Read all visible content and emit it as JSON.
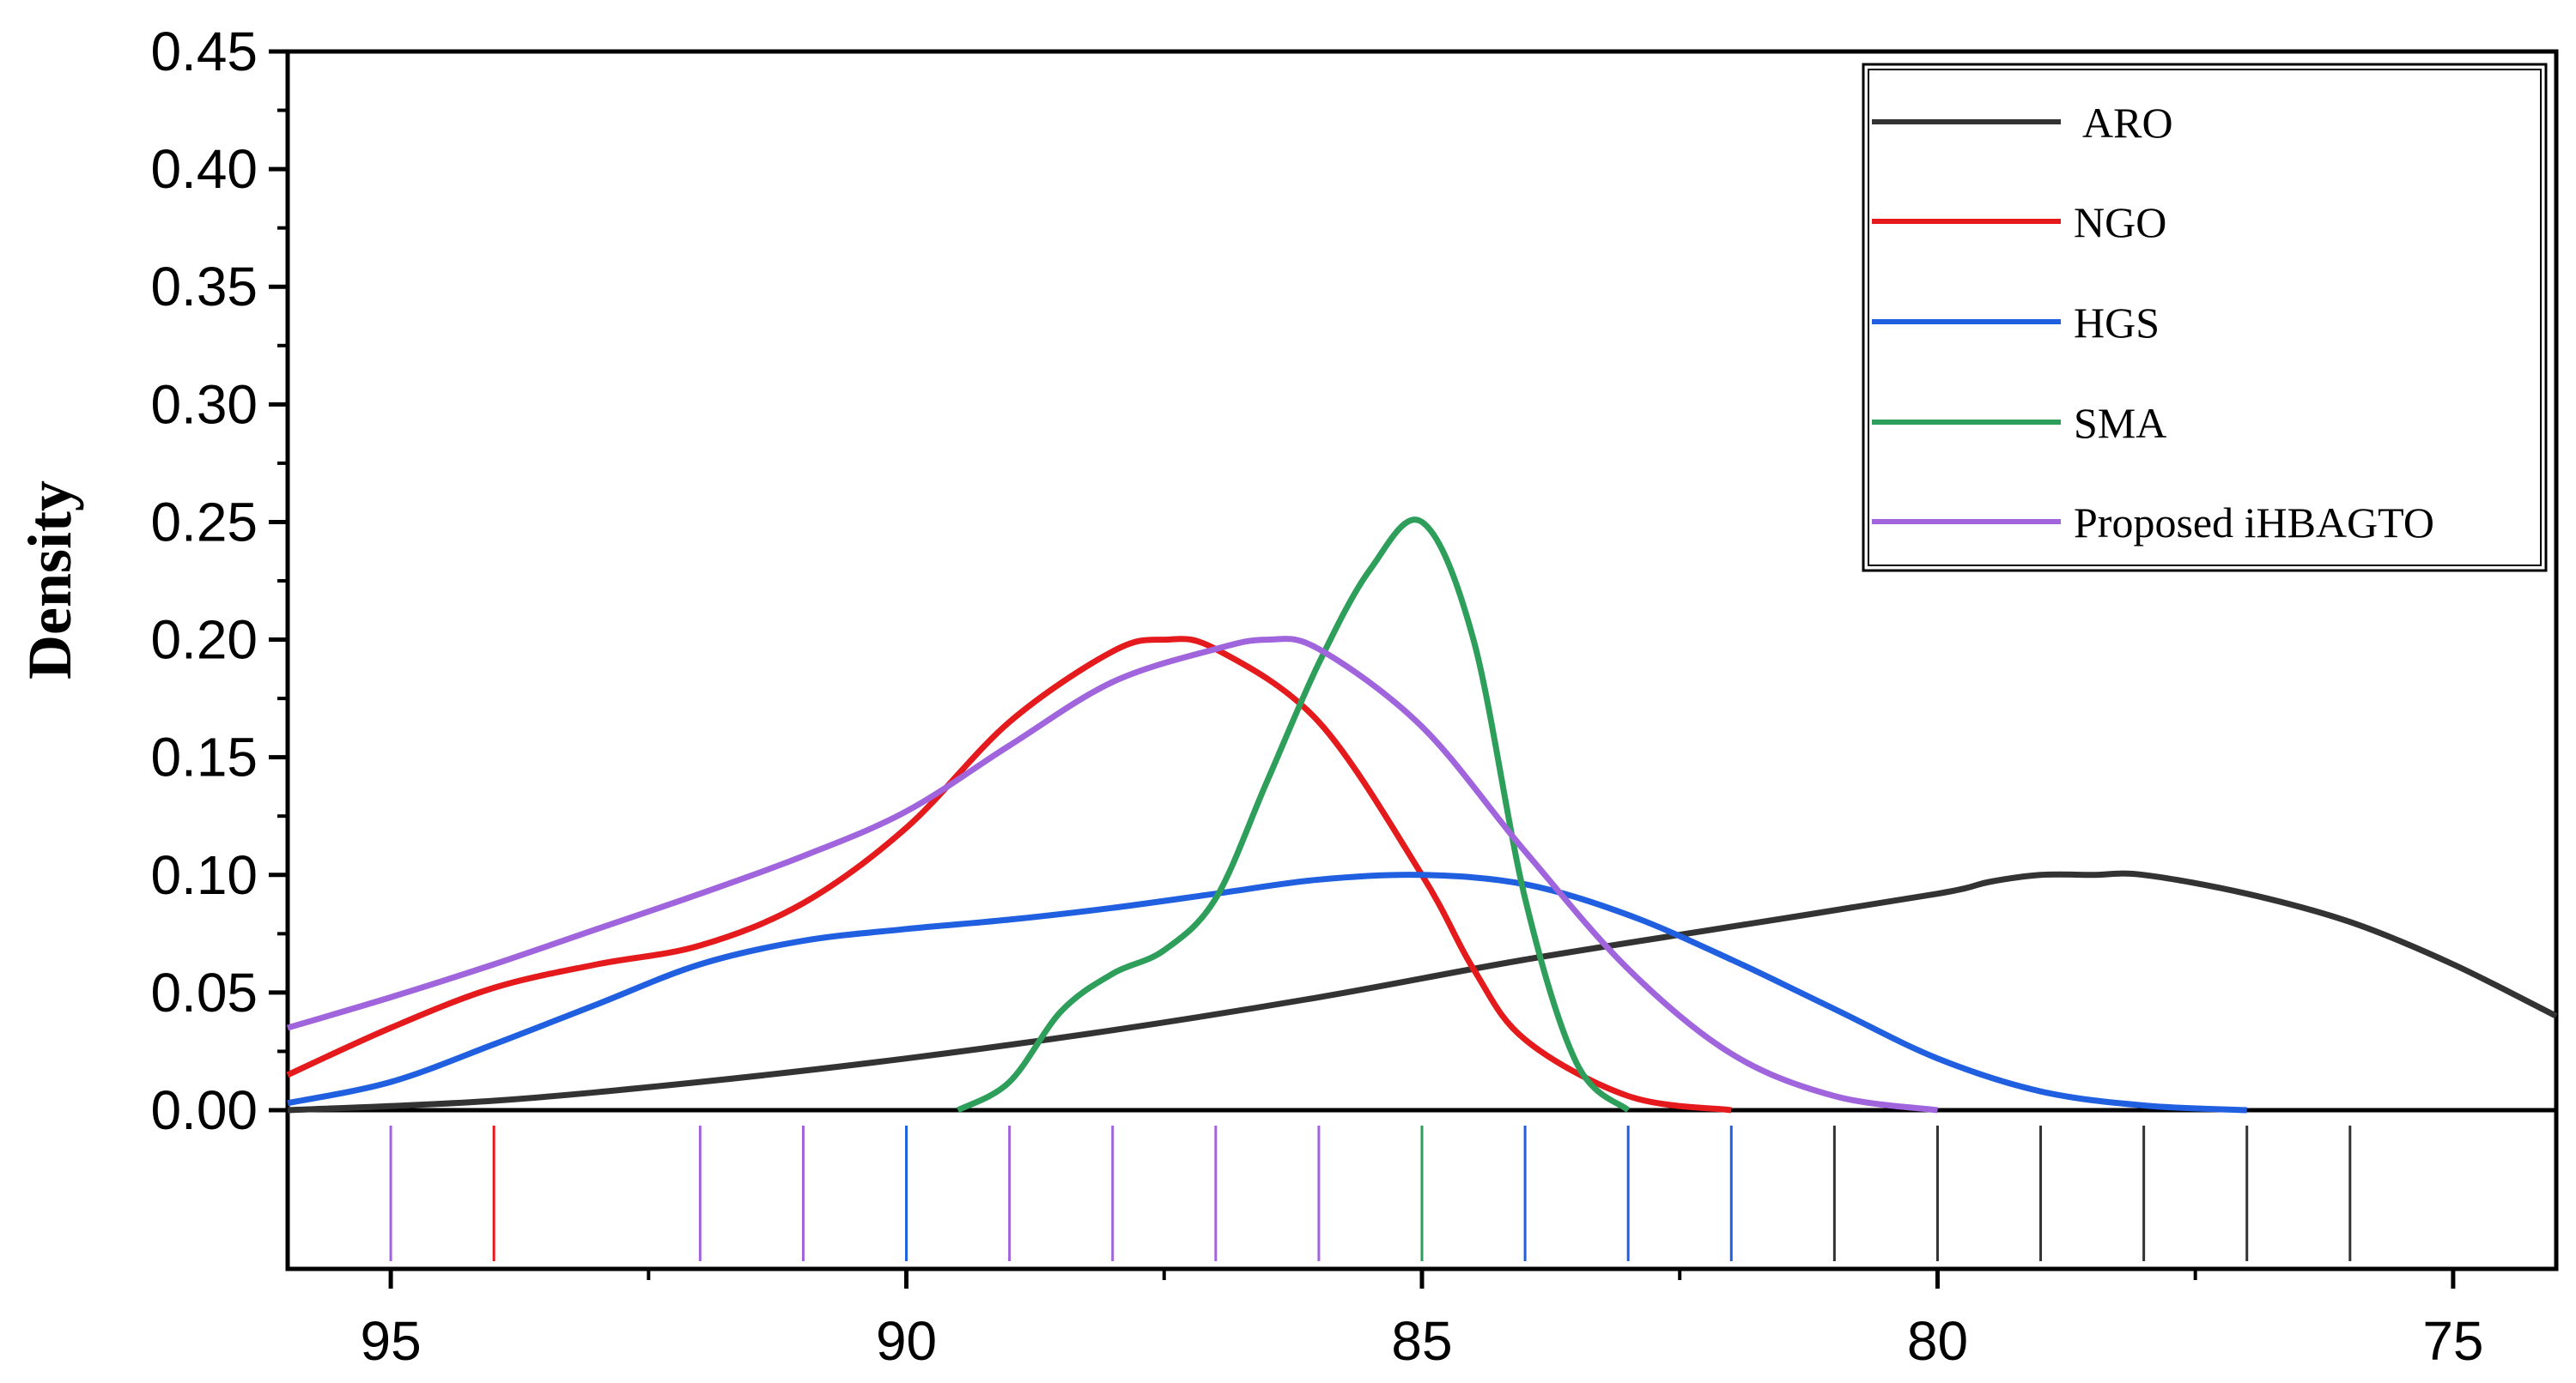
{
  "chart_data": {
    "type": "line",
    "title": "",
    "xlabel": "",
    "ylabel": "Density",
    "x_reversed": true,
    "xlim": [
      96,
      74
    ],
    "ylim": [
      0,
      0.45
    ],
    "x_ticks": [
      95,
      90,
      85,
      80,
      75
    ],
    "y_ticks": [
      "0.00",
      "0.05",
      "0.10",
      "0.15",
      "0.20",
      "0.25",
      "0.30",
      "0.35",
      "0.40",
      "0.45"
    ],
    "grid": false,
    "legend_position": "top-right",
    "series": [
      {
        "name": "ARO",
        "color": "#333333",
        "x": [
          96,
          94,
          92,
          90,
          88,
          86,
          84,
          82,
          80,
          79.5,
          79,
          78.5,
          78,
          77,
          76,
          75,
          74
        ],
        "y": [
          0.0,
          0.004,
          0.012,
          0.022,
          0.034,
          0.048,
          0.064,
          0.078,
          0.092,
          0.097,
          0.1,
          0.1,
          0.1,
          0.092,
          0.08,
          0.062,
          0.04
        ],
        "rug": [
          81,
          80,
          79,
          78,
          77,
          76
        ]
      },
      {
        "name": "NGO",
        "color": "#e41a1c",
        "x": [
          96,
          95,
          94,
          93,
          92,
          91,
          90,
          89,
          88,
          87.5,
          87,
          86,
          85,
          84.5,
          84,
          83,
          82
        ],
        "y": [
          0.015,
          0.035,
          0.052,
          0.062,
          0.07,
          0.088,
          0.12,
          0.165,
          0.195,
          0.2,
          0.196,
          0.165,
          0.1,
          0.06,
          0.03,
          0.006,
          0.0
        ],
        "rug": [
          94
        ]
      },
      {
        "name": "HGS",
        "color": "#1f5fe0",
        "x": [
          96,
          95,
          94,
          93,
          92,
          91,
          90,
          89,
          88,
          87,
          86,
          85,
          84,
          83,
          82,
          81,
          80,
          79,
          78,
          77
        ],
        "y": [
          0.003,
          0.012,
          0.028,
          0.045,
          0.062,
          0.072,
          0.077,
          0.081,
          0.086,
          0.092,
          0.098,
          0.1,
          0.096,
          0.083,
          0.064,
          0.043,
          0.022,
          0.008,
          0.002,
          0.0
        ],
        "rug": [
          90,
          84,
          83,
          82
        ]
      },
      {
        "name": "SMA",
        "color": "#2e9e5b",
        "x": [
          89.5,
          89,
          88.5,
          88,
          87.5,
          87,
          86.5,
          86,
          85.5,
          85,
          84.5,
          84,
          83.5,
          83
        ],
        "y": [
          0.0,
          0.012,
          0.042,
          0.058,
          0.068,
          0.09,
          0.14,
          0.19,
          0.23,
          0.25,
          0.2,
          0.09,
          0.02,
          0.0
        ],
        "rug": [
          85
        ]
      },
      {
        "name": "Proposed iHBAGTO",
        "color": "#a064dc",
        "x": [
          96,
          95,
          94,
          93,
          92,
          91,
          90,
          89,
          88,
          87,
          86.5,
          86,
          85,
          84,
          83,
          82,
          81,
          80
        ],
        "y": [
          0.035,
          0.048,
          0.062,
          0.077,
          0.092,
          0.108,
          0.127,
          0.155,
          0.182,
          0.196,
          0.2,
          0.196,
          0.163,
          0.11,
          0.06,
          0.024,
          0.006,
          0.0
        ],
        "rug": [
          95,
          92,
          91,
          89,
          88,
          87,
          86
        ]
      }
    ]
  }
}
